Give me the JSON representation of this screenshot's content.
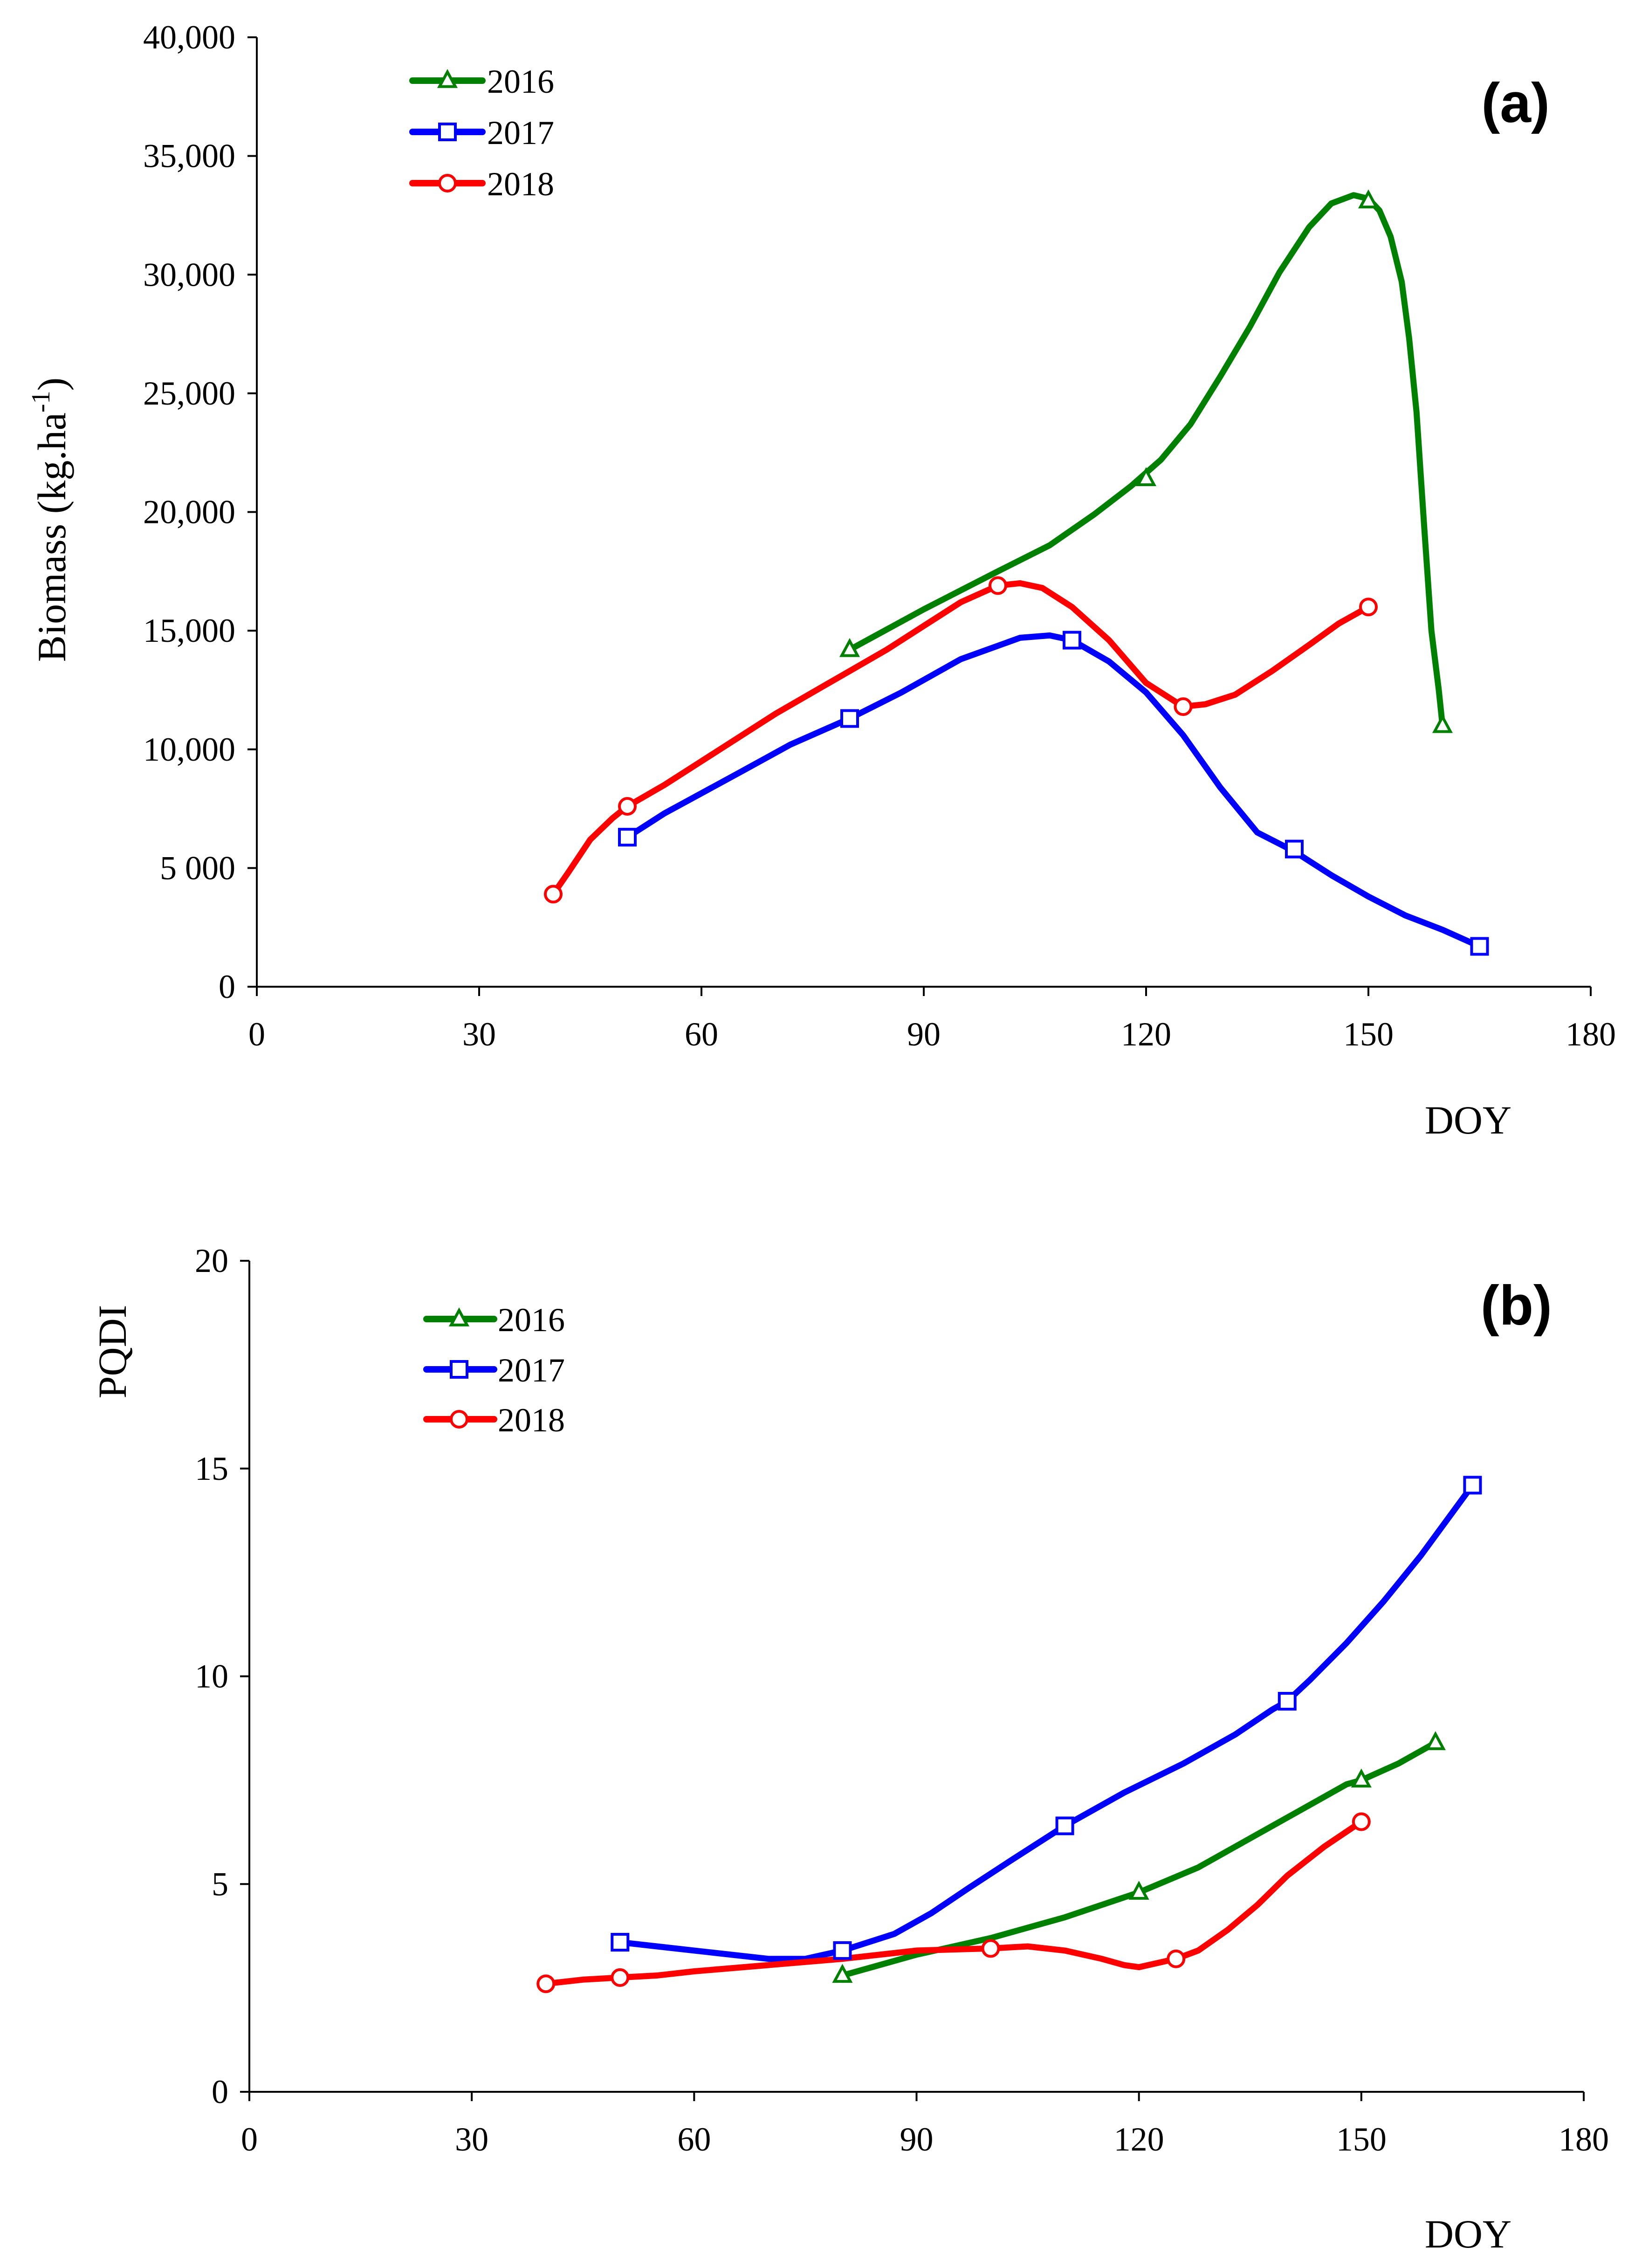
{
  "chart_data": [
    {
      "type": "line",
      "panel_label": "(a)",
      "ylabel_main": "Biomass (kg.ha",
      "ylabel_super": "-1",
      "ylabel_close": ")",
      "xlabel": "DOY",
      "xlim": [
        0,
        180
      ],
      "ylim": [
        0,
        40000
      ],
      "x_ticks": [
        0,
        30,
        60,
        90,
        120,
        150,
        180
      ],
      "x_tick_labels": [
        "0",
        "30",
        "60",
        "90",
        "120",
        "150",
        "180"
      ],
      "y_ticks": [
        0,
        5000,
        10000,
        15000,
        20000,
        25000,
        30000,
        35000,
        40000
      ],
      "y_tick_labels": [
        "0",
        "5 000",
        "10,000",
        "15,000",
        "20,000",
        "25,000",
        "30,000",
        "35,000",
        "40,000"
      ],
      "grid": false,
      "legend_position": "top-left",
      "series": [
        {
          "name": "2016",
          "color": "#008000",
          "marker": "triangle",
          "curve_x": [
            80,
            90,
            100,
            107,
            113,
            118,
            122,
            126,
            130,
            134,
            138,
            142,
            145,
            148,
            150,
            151.5,
            153,
            154.5,
            155.5,
            156.5,
            157.5,
            158.5,
            159.5,
            160
          ],
          "curve_y": [
            14200,
            15900,
            17500,
            18600,
            19900,
            21100,
            22200,
            23700,
            25700,
            27800,
            30100,
            32000,
            33000,
            33350,
            33200,
            32700,
            31600,
            29700,
            27300,
            24200,
            19500,
            15000,
            12500,
            11000
          ],
          "marker_x": [
            80,
            120,
            150,
            160
          ],
          "marker_y": [
            14200,
            21400,
            33100,
            11000
          ]
        },
        {
          "name": "2017",
          "color": "#0000ff",
          "marker": "square",
          "curve_x": [
            50,
            55,
            65,
            72,
            80,
            87,
            95,
            103,
            107,
            110,
            115,
            120,
            125,
            130,
            135,
            140,
            145,
            150,
            155,
            160,
            165
          ],
          "curve_y": [
            6300,
            7300,
            9000,
            10200,
            11300,
            12400,
            13800,
            14700,
            14800,
            14600,
            13700,
            12400,
            10600,
            8400,
            6500,
            5700,
            4700,
            3800,
            3000,
            2400,
            1700
          ],
          "marker_x": [
            50,
            80,
            110,
            140,
            165
          ],
          "marker_y": [
            6300,
            11300,
            14600,
            5800,
            1700
          ]
        },
        {
          "name": "2018",
          "color": "#ff0000",
          "marker": "circle",
          "curve_x": [
            40,
            42,
            45,
            48,
            50,
            55,
            60,
            65,
            70,
            75,
            80,
            85,
            90,
            95,
            100,
            103,
            106,
            110,
            115,
            120,
            125,
            128,
            132,
            137,
            142,
            146,
            150
          ],
          "curve_y": [
            3900,
            4800,
            6200,
            7100,
            7600,
            8500,
            9500,
            10500,
            11500,
            12400,
            13300,
            14200,
            15200,
            16200,
            16900,
            17000,
            16800,
            16000,
            14600,
            12800,
            11800,
            11900,
            12300,
            13300,
            14400,
            15300,
            16000
          ],
          "marker_x": [
            40,
            50,
            100,
            125,
            150
          ],
          "marker_y": [
            3900,
            7600,
            16900,
            11800,
            16000
          ]
        }
      ]
    },
    {
      "type": "line",
      "panel_label": "(b)",
      "ylabel": "PQDI",
      "xlabel": "DOY",
      "xlim": [
        0,
        180
      ],
      "ylim": [
        0,
        20
      ],
      "x_ticks": [
        0,
        30,
        60,
        90,
        120,
        150,
        180
      ],
      "x_tick_labels": [
        "0",
        "30",
        "60",
        "90",
        "120",
        "150",
        "180"
      ],
      "y_ticks": [
        0,
        5,
        10,
        15,
        20
      ],
      "y_tick_labels": [
        "0",
        "5",
        "10",
        "15",
        "20"
      ],
      "grid": false,
      "legend_position": "top-left",
      "series": [
        {
          "name": "2016",
          "color": "#008000",
          "marker": "triangle",
          "curve_x": [
            80,
            90,
            100,
            110,
            120,
            128,
            133,
            138,
            143,
            148,
            150,
            155,
            160
          ],
          "curve_y": [
            2.8,
            3.3,
            3.7,
            4.2,
            4.8,
            5.4,
            5.9,
            6.4,
            6.9,
            7.4,
            7.5,
            7.9,
            8.4
          ],
          "marker_x": [
            80,
            120,
            150,
            160
          ],
          "marker_y": [
            2.8,
            4.8,
            7.5,
            8.4
          ]
        },
        {
          "name": "2017",
          "color": "#0000ff",
          "marker": "square",
          "curve_x": [
            50,
            55,
            60,
            65,
            70,
            75,
            80,
            87,
            92,
            97,
            103,
            110,
            118,
            126,
            133,
            138,
            140,
            143,
            148,
            153,
            158,
            165
          ],
          "curve_y": [
            3.6,
            3.5,
            3.4,
            3.3,
            3.2,
            3.2,
            3.4,
            3.8,
            4.3,
            4.9,
            5.6,
            6.4,
            7.2,
            7.9,
            8.6,
            9.2,
            9.4,
            9.9,
            10.8,
            11.8,
            12.9,
            14.6
          ],
          "marker_x": [
            50,
            80,
            110,
            140,
            165
          ],
          "marker_y": [
            3.6,
            3.4,
            6.4,
            9.4,
            14.6
          ]
        },
        {
          "name": "2018",
          "color": "#ff0000",
          "marker": "circle",
          "curve_x": [
            40,
            45,
            50,
            55,
            60,
            70,
            80,
            90,
            100,
            105,
            110,
            115,
            118,
            120,
            125,
            128,
            132,
            136,
            140,
            145,
            150
          ],
          "curve_y": [
            2.6,
            2.7,
            2.75,
            2.8,
            2.9,
            3.05,
            3.2,
            3.4,
            3.45,
            3.5,
            3.4,
            3.2,
            3.05,
            3.0,
            3.2,
            3.4,
            3.9,
            4.5,
            5.2,
            5.9,
            6.5
          ],
          "marker_x": [
            40,
            50,
            100,
            125,
            150
          ],
          "marker_y": [
            2.6,
            2.75,
            3.45,
            3.2,
            6.5
          ]
        }
      ]
    }
  ]
}
